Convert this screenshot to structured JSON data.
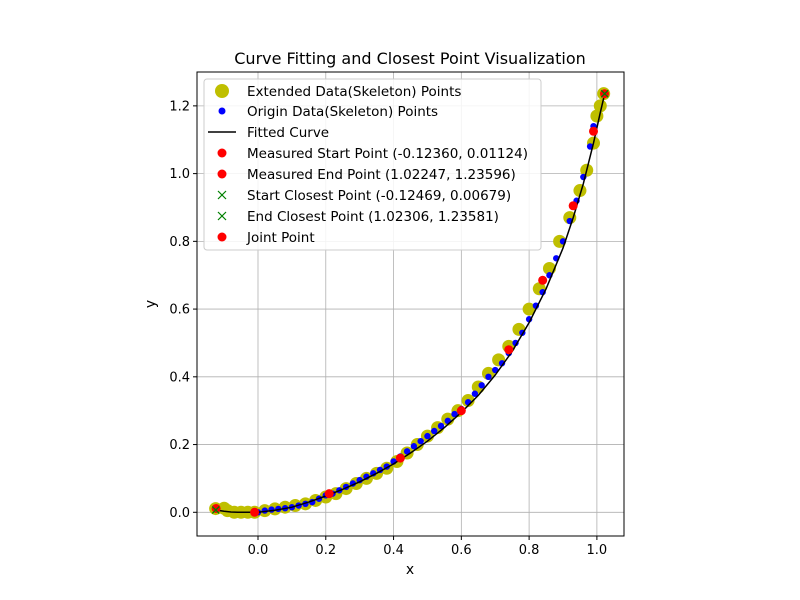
{
  "chart_data": {
    "type": "scatter",
    "title": "Curve Fitting and Closest Point Visualization",
    "xlabel": "x",
    "ylabel": "y",
    "xlim": [
      -0.18,
      1.08
    ],
    "ylim": [
      -0.07,
      1.3
    ],
    "x_ticks": [
      0.0,
      0.2,
      0.4,
      0.6,
      0.8,
      1.0
    ],
    "x_tick_labels": [
      "0.0",
      "0.2",
      "0.4",
      "0.6",
      "0.8",
      "1.0"
    ],
    "y_ticks": [
      0.0,
      0.2,
      0.4,
      0.6,
      0.8,
      1.0,
      1.2
    ],
    "y_tick_labels": [
      "0.0",
      "0.2",
      "0.4",
      "0.6",
      "0.8",
      "1.0",
      "1.2"
    ],
    "grid": true,
    "legend_position": "top-left",
    "colors": {
      "extended": "#bfbf00",
      "origin": "#0000ff",
      "fitted": "#000000",
      "measured": "#ff0000",
      "closest": "#008000",
      "joint": "#ff0000",
      "grid": "#b0b0b0"
    },
    "series": [
      {
        "name": "Extended Data(Skeleton) Points",
        "kind": "extended",
        "x": [
          -0.125,
          -0.1,
          -0.09,
          -0.07,
          -0.05,
          -0.03,
          -0.01,
          0.02,
          0.05,
          0.08,
          0.11,
          0.14,
          0.17,
          0.2,
          0.23,
          0.26,
          0.29,
          0.32,
          0.35,
          0.38,
          0.41,
          0.44,
          0.47,
          0.5,
          0.53,
          0.56,
          0.59,
          0.62,
          0.65,
          0.68,
          0.71,
          0.74,
          0.77,
          0.8,
          0.83,
          0.86,
          0.89,
          0.92,
          0.95,
          0.97,
          0.99,
          1.0,
          1.01,
          1.02
        ],
        "y": [
          0.011,
          0.012,
          0.005,
          0.0,
          0.0,
          0.0,
          0.0,
          0.005,
          0.01,
          0.015,
          0.02,
          0.025,
          0.035,
          0.045,
          0.055,
          0.07,
          0.085,
          0.1,
          0.115,
          0.13,
          0.15,
          0.175,
          0.2,
          0.225,
          0.25,
          0.275,
          0.3,
          0.33,
          0.37,
          0.41,
          0.45,
          0.49,
          0.54,
          0.6,
          0.66,
          0.72,
          0.8,
          0.87,
          0.95,
          1.01,
          1.09,
          1.17,
          1.2,
          1.236
        ]
      },
      {
        "name": "Origin Data(Skeleton) Points",
        "kind": "origin",
        "x": [
          -0.01,
          0.0,
          0.02,
          0.04,
          0.06,
          0.08,
          0.1,
          0.12,
          0.14,
          0.16,
          0.18,
          0.2,
          0.22,
          0.24,
          0.26,
          0.28,
          0.3,
          0.32,
          0.34,
          0.36,
          0.38,
          0.4,
          0.42,
          0.44,
          0.46,
          0.48,
          0.5,
          0.52,
          0.54,
          0.56,
          0.58,
          0.6,
          0.62,
          0.64,
          0.66,
          0.68,
          0.7,
          0.72,
          0.74,
          0.76,
          0.78,
          0.8,
          0.82,
          0.84,
          0.86,
          0.88,
          0.9,
          0.92,
          0.94,
          0.96,
          0.98,
          0.99
        ],
        "y": [
          0.0,
          0.0,
          0.005,
          0.008,
          0.01,
          0.012,
          0.015,
          0.02,
          0.025,
          0.03,
          0.04,
          0.05,
          0.055,
          0.065,
          0.075,
          0.085,
          0.095,
          0.105,
          0.115,
          0.125,
          0.135,
          0.15,
          0.165,
          0.18,
          0.195,
          0.21,
          0.225,
          0.24,
          0.255,
          0.27,
          0.29,
          0.305,
          0.325,
          0.35,
          0.375,
          0.4,
          0.42,
          0.44,
          0.47,
          0.5,
          0.53,
          0.57,
          0.61,
          0.65,
          0.7,
          0.75,
          0.8,
          0.86,
          0.92,
          0.99,
          1.08,
          1.14
        ]
      }
    ],
    "fitted_curve": {
      "name": "Fitted Curve",
      "x": [
        -0.12469,
        -0.1,
        -0.08,
        -0.06,
        -0.04,
        -0.02,
        0.0,
        0.05,
        0.1,
        0.15,
        0.2,
        0.25,
        0.3,
        0.35,
        0.4,
        0.45,
        0.5,
        0.55,
        0.6,
        0.65,
        0.7,
        0.75,
        0.8,
        0.85,
        0.9,
        0.93,
        0.96,
        0.99,
        1.01,
        1.02306
      ],
      "y": [
        0.00679,
        0.003,
        0.001,
        0.0,
        0.0,
        0.0,
        0.0,
        0.006,
        0.015,
        0.03,
        0.048,
        0.068,
        0.09,
        0.115,
        0.143,
        0.175,
        0.21,
        0.25,
        0.295,
        0.345,
        0.405,
        0.475,
        0.56,
        0.66,
        0.78,
        0.87,
        0.97,
        1.09,
        1.18,
        1.23581
      ]
    },
    "measured_points": [
      {
        "name": "Measured Start Point (-0.12360, 0.01124)",
        "x": -0.1236,
        "y": 0.01124
      },
      {
        "name": "Measured End Point (1.02247, 1.23596)",
        "x": 1.02247,
        "y": 1.23596
      }
    ],
    "closest_points": [
      {
        "name": "Start Closest Point (-0.12469, 0.00679)",
        "x": -0.12469,
        "y": 0.00679
      },
      {
        "name": "End Closest Point (1.02306, 1.23581)",
        "x": 1.02306,
        "y": 1.23581
      }
    ],
    "joint_points": {
      "name": "Joint Point",
      "x": [
        -0.01,
        0.21,
        0.42,
        0.6,
        0.74,
        0.84,
        0.93,
        0.99
      ],
      "y": [
        0.0,
        0.055,
        0.16,
        0.3,
        0.48,
        0.685,
        0.905,
        1.125
      ]
    }
  }
}
